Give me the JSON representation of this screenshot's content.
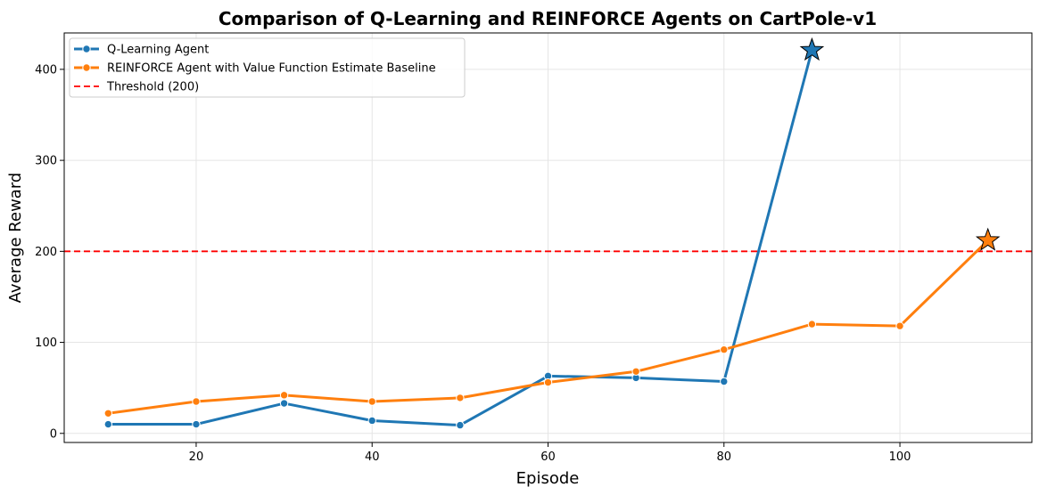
{
  "chart_data": {
    "type": "line",
    "title": "Comparison of Q-Learning and REINFORCE Agents on CartPole-v1",
    "xlabel": "Episode",
    "ylabel": "Average Reward",
    "xlim": [
      5,
      115
    ],
    "ylim": [
      -10,
      440
    ],
    "xticks": [
      20,
      40,
      60,
      80,
      100
    ],
    "yticks": [
      0,
      100,
      200,
      300,
      400
    ],
    "grid": true,
    "legend_position": "top-left",
    "series": [
      {
        "name": "Q-Learning Agent",
        "color": "#1f77b4",
        "x": [
          10,
          20,
          30,
          40,
          50,
          60,
          70,
          80,
          90
        ],
        "values": [
          10,
          10,
          33,
          14,
          9,
          63,
          61,
          57,
          421
        ],
        "final_marker": "star"
      },
      {
        "name": "REINFORCE Agent with Value Function Estimate Baseline",
        "color": "#ff7f0e",
        "x": [
          10,
          20,
          30,
          40,
          50,
          60,
          70,
          80,
          90,
          100,
          110
        ],
        "values": [
          22,
          35,
          42,
          35,
          39,
          56,
          68,
          92,
          120,
          118,
          212
        ],
        "final_marker": "star"
      }
    ],
    "reference_lines": [
      {
        "name": "Threshold (200)",
        "y": 200,
        "color": "#ff0000",
        "style": "dashed"
      }
    ]
  }
}
